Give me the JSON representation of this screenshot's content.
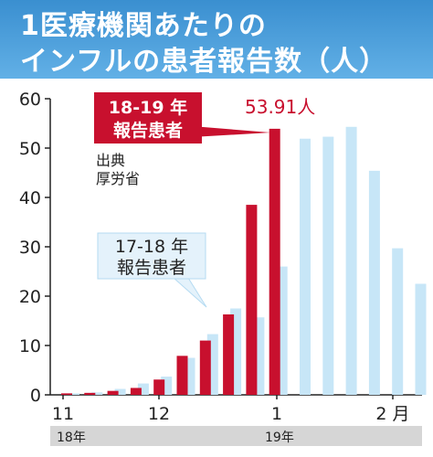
{
  "title": {
    "line1": "1医療機関あたりの",
    "line2": "インフルの患者報告数（人）"
  },
  "source": {
    "line1": "出典",
    "line2": "厚労省"
  },
  "callouts": {
    "current": {
      "line1": "18-19 年",
      "line2": "報告患者"
    },
    "previous": {
      "line1": "17-18 年",
      "line2": "報告患者"
    },
    "peak_label": "53.91人"
  },
  "colors": {
    "current": "#c8102e",
    "previous": "#c7e6f7",
    "title_bg": "#4a9fdc"
  },
  "chart_data": {
    "type": "bar",
    "ylim": [
      0,
      60
    ],
    "yticks": [
      0,
      10,
      20,
      30,
      40,
      50,
      60
    ],
    "xtick_labels": [
      "11",
      "12",
      "1",
      "2 月"
    ],
    "year_labels": [
      "18年",
      "19年"
    ],
    "series": [
      {
        "name": "17-18 年 報告患者",
        "values": [
          0.3,
          0.5,
          1.2,
          2.3,
          3.7,
          7.5,
          12.3,
          17.5,
          15.7,
          26.0,
          51.9,
          52.3,
          54.3,
          45.4,
          29.7,
          22.5
        ]
      },
      {
        "name": "18-19 年 報告患者",
        "values": [
          0.3,
          0.4,
          0.8,
          1.4,
          3.1,
          7.9,
          11.0,
          16.3,
          38.5,
          53.91
        ]
      }
    ]
  }
}
